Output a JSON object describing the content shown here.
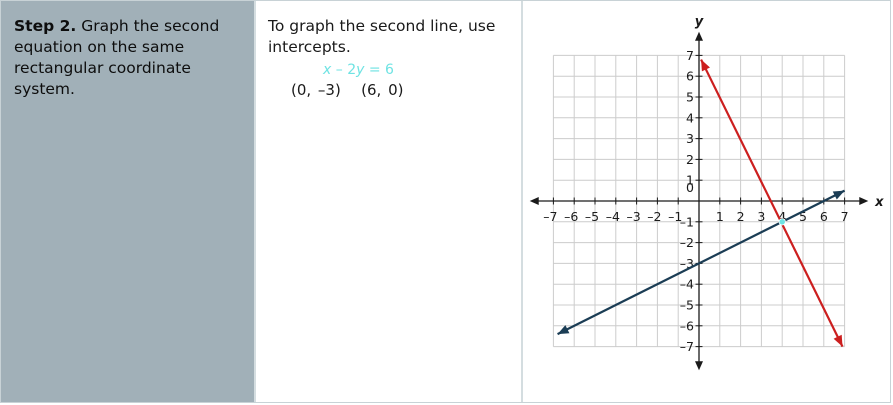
{
  "step": {
    "title": "Step 2.",
    "text": "Graph the second equation on the same rectangular coordinate system."
  },
  "explanation": {
    "text": "To graph the second line, use intercepts.",
    "equation_x": "x",
    "equation_mid": " – 2",
    "equation_y": "y",
    "equation_rest": " = 6",
    "intercept_1": "(0, –3)",
    "intercept_2": "(6, 0)"
  },
  "colors": {
    "step_cell_bg": "#a1b0b8",
    "equation": "#6fe3e3",
    "line_red": "#cc1f1f",
    "line_navy": "#1b3d55",
    "intersection": "#6fe3e3",
    "grid": "#cccccc"
  },
  "chart_data": {
    "type": "line",
    "xlabel": "x",
    "ylabel": "y",
    "xlim": [
      -7,
      7
    ],
    "ylim": [
      -7,
      7
    ],
    "grid": true,
    "x_ticks": [
      "–7",
      "–6",
      "–5",
      "–4",
      "–3",
      "–2",
      "–1",
      "1",
      "2",
      "3",
      "4",
      "5",
      "6",
      "7"
    ],
    "y_ticks_pos": [
      "1",
      "2",
      "3",
      "4",
      "5",
      "6",
      "7"
    ],
    "y_ticks_neg": [
      "–1",
      "–2",
      "–3",
      "–4",
      "–5",
      "–6",
      "–7"
    ],
    "origin_label": "0",
    "series": [
      {
        "color": "#cc1f1f",
        "points": [
          [
            0.1,
            6.8
          ],
          [
            6.9,
            -7
          ]
        ]
      },
      {
        "color": "#1b3d55",
        "points": [
          [
            -6.8,
            -6.4
          ],
          [
            7,
            0.5
          ]
        ]
      }
    ],
    "intersection": [
      4,
      -1
    ]
  }
}
